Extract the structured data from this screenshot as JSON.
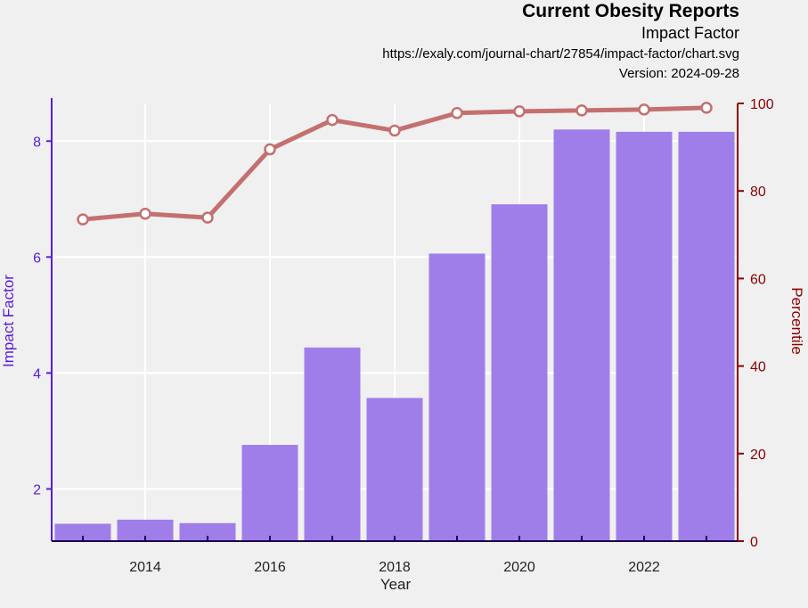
{
  "header": {
    "title": "Current Obesity Reports",
    "subtitle": "Impact Factor",
    "url": "https://exaly.com/journal-chart/27854/impact-factor/chart.svg",
    "version": "Version: 2024-09-28"
  },
  "chart_data": {
    "type": "bar",
    "x": [
      2013,
      2014,
      2015,
      2016,
      2017,
      2018,
      2019,
      2020,
      2021,
      2022,
      2023
    ],
    "xlabel": "Year",
    "xticks": [
      2014,
      2016,
      2018,
      2020,
      2022
    ],
    "xlim": [
      2012.5,
      2023.5
    ],
    "series": [
      {
        "name": "Impact Factor",
        "kind": "bar",
        "axis": "left",
        "color": "#9b77e8",
        "values": [
          1.4,
          1.47,
          1.41,
          2.76,
          4.44,
          3.57,
          6.06,
          6.91,
          8.2,
          8.16,
          8.16
        ]
      },
      {
        "name": "Percentile",
        "kind": "line",
        "axis": "right",
        "color": "#c47070",
        "values": [
          73.5,
          74.8,
          73.9,
          89.5,
          96.2,
          93.8,
          97.8,
          98.2,
          98.4,
          98.6,
          99.0
        ]
      }
    ],
    "y_left": {
      "label": "Impact Factor",
      "ticks": [
        2,
        4,
        6,
        8
      ],
      "ylim": [
        1.1,
        8.65
      ],
      "color": "#5a1bd8"
    },
    "y_right": {
      "label": "Percentile",
      "ticks": [
        0,
        20,
        40,
        60,
        80,
        100
      ],
      "ylim": [
        0,
        100
      ],
      "color": "#8b0000"
    },
    "grid": true
  }
}
